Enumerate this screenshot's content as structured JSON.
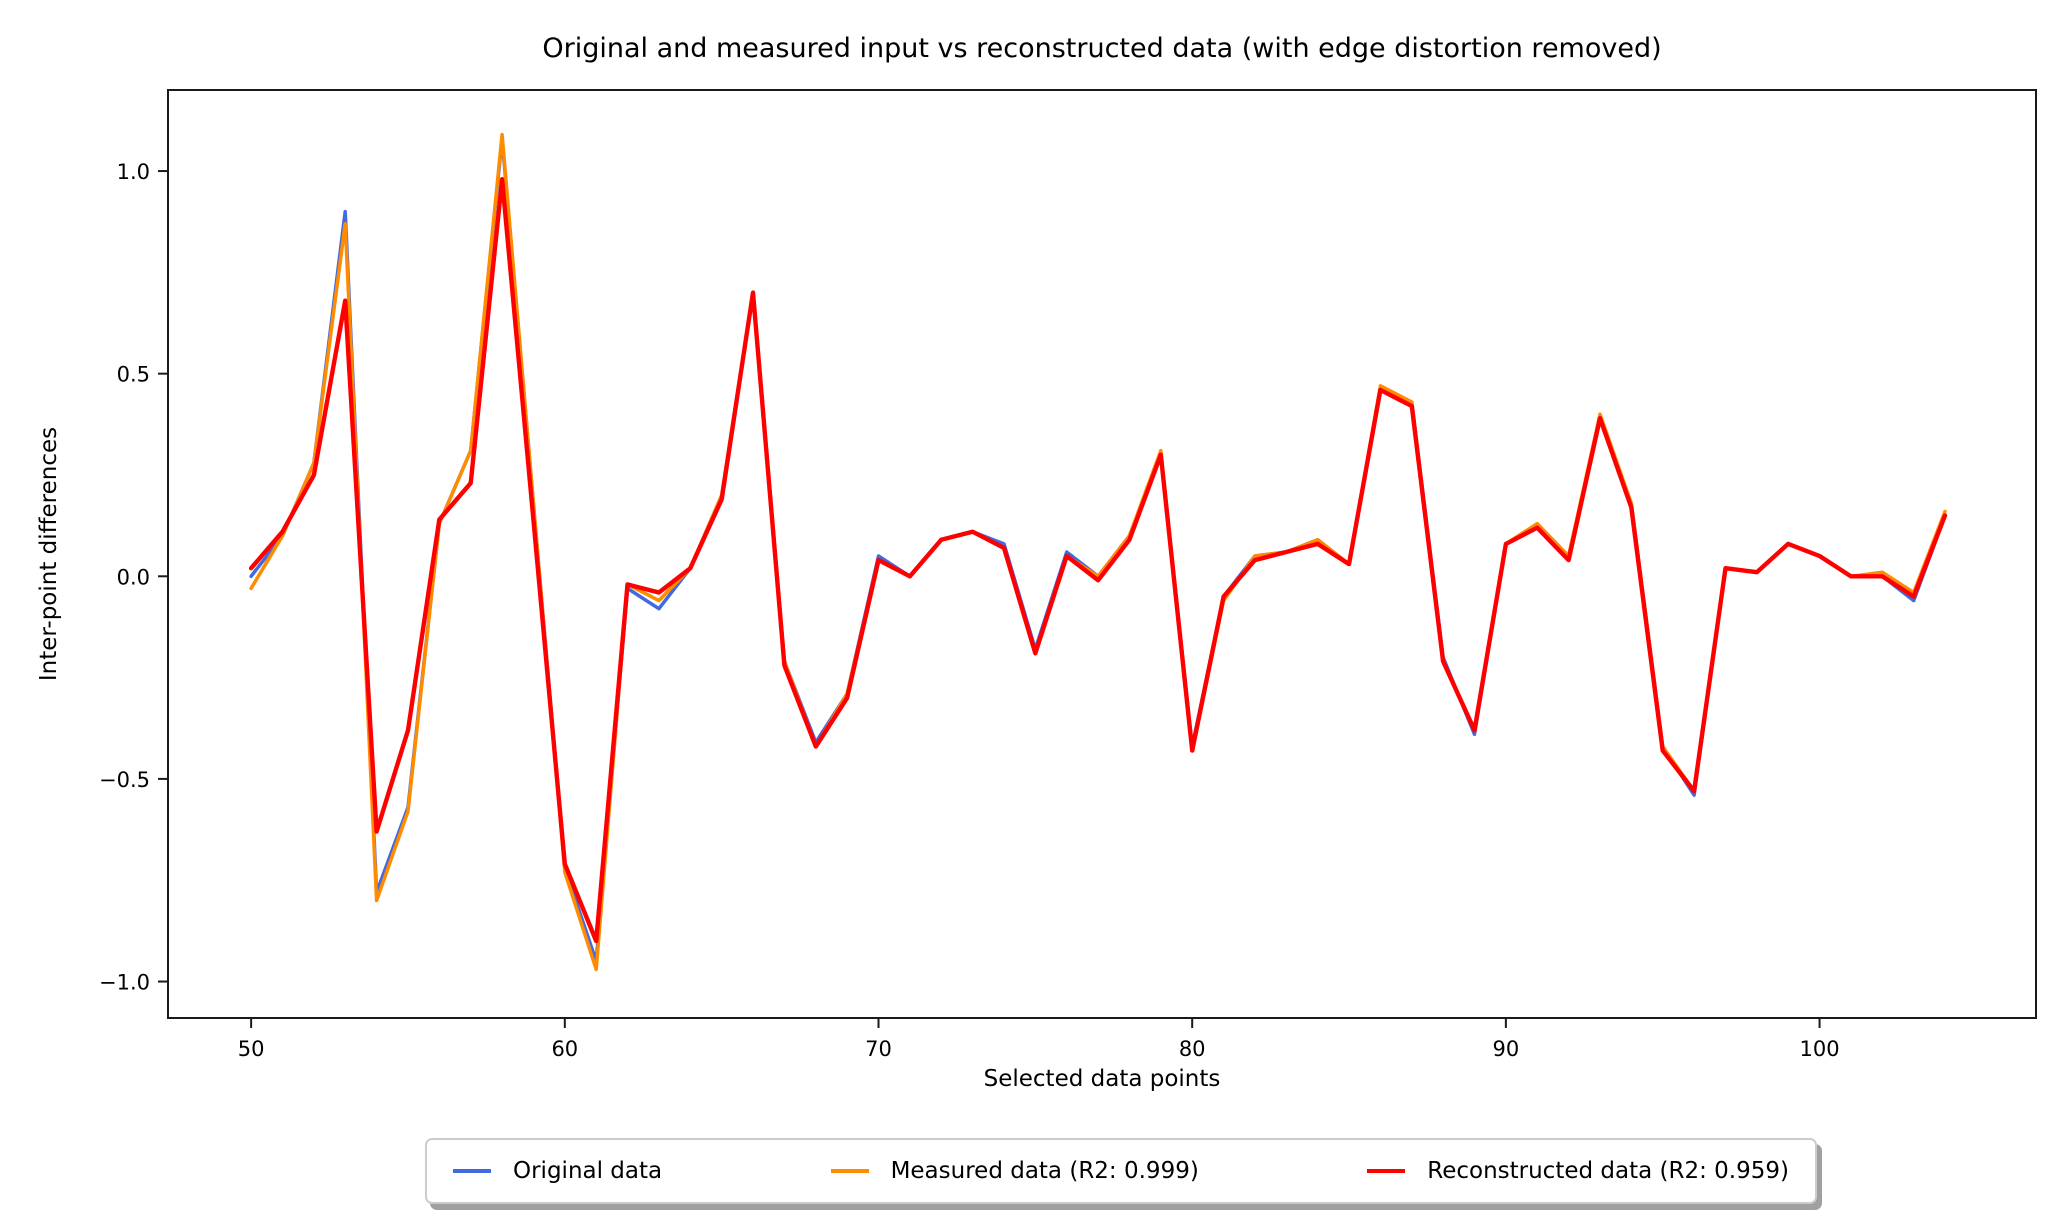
{
  "chart_data": {
    "type": "line",
    "title": "Original and measured input vs reconstructed data (with edge distortion removed)",
    "xlabel": "Selected data points",
    "ylabel": "Inter-point differences",
    "grid": false,
    "legend_position": "lower center, outside axes",
    "xlim": [
      47.35,
      106.9
    ],
    "ylim": [
      -1.09,
      1.2
    ],
    "xticks": [
      50,
      60,
      70,
      80,
      90,
      100
    ],
    "yticks": [
      1.0,
      0.5,
      0.0,
      -0.5,
      -1.0
    ],
    "x": [
      50,
      51,
      52,
      53,
      54,
      55,
      56,
      57,
      58,
      59,
      60,
      61,
      62,
      63,
      64,
      65,
      66,
      67,
      68,
      69,
      70,
      71,
      72,
      73,
      74,
      75,
      76,
      77,
      78,
      79,
      80,
      81,
      82,
      83,
      84,
      85,
      86,
      87,
      88,
      89,
      90,
      91,
      92,
      93,
      94,
      95,
      96,
      97,
      98,
      99,
      100,
      101,
      102,
      103,
      104
    ],
    "series": [
      {
        "name": "Original data",
        "color": "#4169e1",
        "linewidth": 3.5,
        "values": [
          0.0,
          0.1,
          0.28,
          0.9,
          -0.78,
          -0.57,
          0.13,
          0.31,
          1.08,
          0.18,
          -0.72,
          -0.95,
          -0.03,
          -0.08,
          0.02,
          0.2,
          0.7,
          -0.21,
          -0.41,
          -0.29,
          0.05,
          0.0,
          0.09,
          0.11,
          0.08,
          -0.18,
          0.06,
          0.0,
          0.1,
          0.3,
          -0.42,
          -0.05,
          0.05,
          0.06,
          0.09,
          0.03,
          0.46,
          0.43,
          -0.2,
          -0.39,
          0.08,
          0.12,
          0.05,
          0.39,
          0.18,
          -0.42,
          -0.54,
          0.02,
          0.01,
          0.08,
          0.05,
          0.0,
          0.0,
          -0.06,
          0.15
        ]
      },
      {
        "name": "Measured data (R2: 0.999)",
        "color": "#ff8c00",
        "linewidth": 3.5,
        "values": [
          -0.03,
          0.1,
          0.28,
          0.87,
          -0.8,
          -0.58,
          0.13,
          0.31,
          1.09,
          0.18,
          -0.73,
          -0.97,
          -0.02,
          -0.06,
          0.02,
          0.2,
          0.7,
          -0.21,
          -0.42,
          -0.29,
          0.04,
          0.0,
          0.09,
          0.11,
          0.07,
          -0.19,
          0.05,
          0.0,
          0.1,
          0.31,
          -0.43,
          -0.06,
          0.05,
          0.06,
          0.09,
          0.03,
          0.47,
          0.43,
          -0.21,
          -0.38,
          0.08,
          0.13,
          0.05,
          0.4,
          0.18,
          -0.42,
          -0.53,
          0.02,
          0.01,
          0.08,
          0.05,
          0.0,
          0.01,
          -0.04,
          0.16
        ]
      },
      {
        "name": "Reconstructed data (R2: 0.959)",
        "color": "#ff0000",
        "linewidth": 4.4,
        "values": [
          0.02,
          0.11,
          0.25,
          0.68,
          -0.63,
          -0.38,
          0.14,
          0.23,
          0.98,
          0.14,
          -0.71,
          -0.9,
          -0.02,
          -0.04,
          0.02,
          0.19,
          0.7,
          -0.22,
          -0.42,
          -0.3,
          0.04,
          0.0,
          0.09,
          0.11,
          0.07,
          -0.19,
          0.05,
          -0.01,
          0.09,
          0.3,
          -0.43,
          -0.05,
          0.04,
          0.06,
          0.08,
          0.03,
          0.46,
          0.42,
          -0.21,
          -0.38,
          0.08,
          0.12,
          0.04,
          0.39,
          0.17,
          -0.43,
          -0.53,
          0.02,
          0.01,
          0.08,
          0.05,
          0.0,
          0.0,
          -0.05,
          0.15
        ]
      }
    ]
  }
}
